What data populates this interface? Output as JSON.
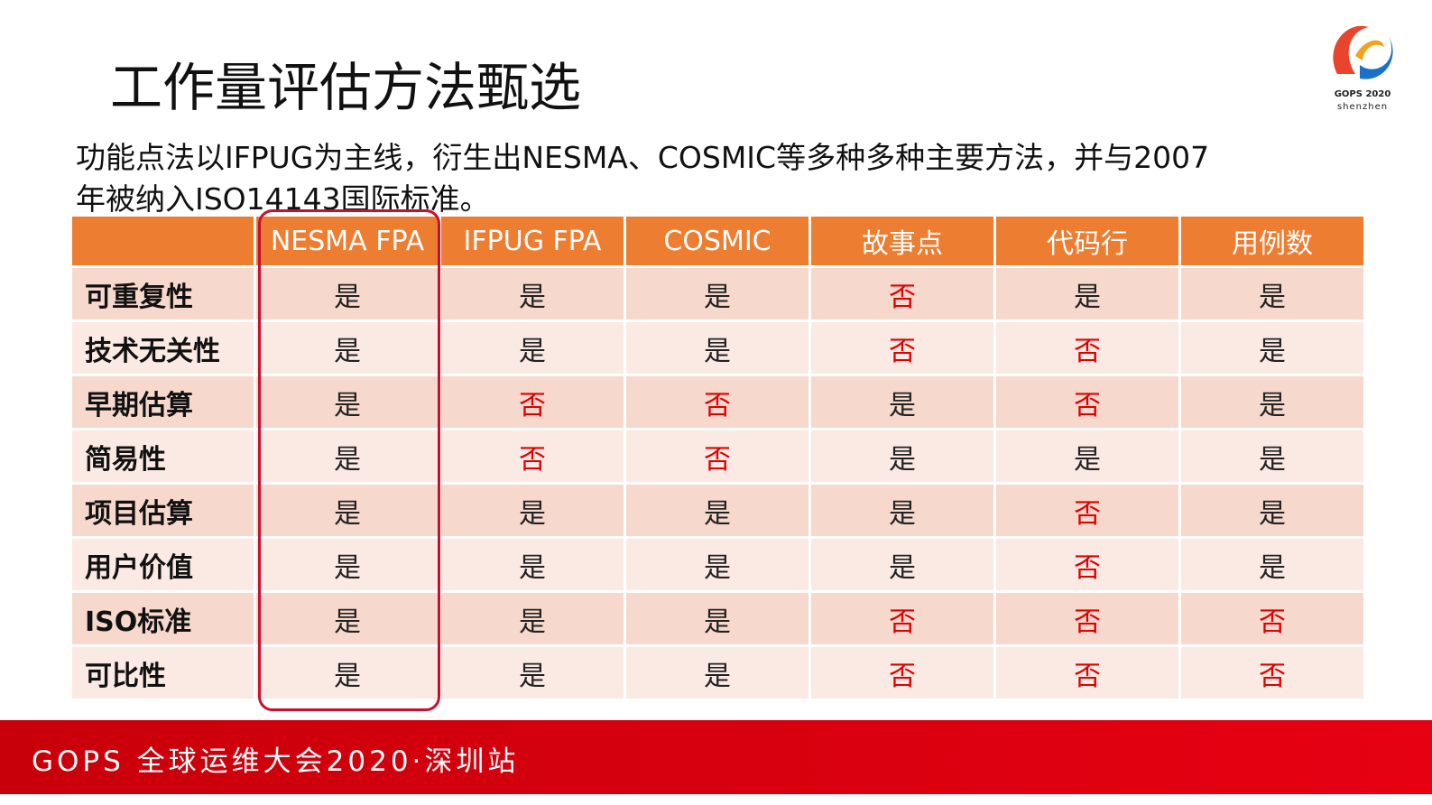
{
  "header": {
    "title": "工作量评估方法甄选",
    "subtitle_lines": [
      "功能点法以IFPUG为主线，衍生出NESMA、COSMIC等多种多种主要方法，并与2007",
      "年被纳入ISO14143国际标准。"
    ]
  },
  "logo": {
    "name": "GOPS 2020",
    "city": "shenzhen"
  },
  "table": {
    "columns": [
      "NESMA FPA",
      "IFPUG FPA",
      "COSMIC",
      "故事点",
      "代码行",
      "用例数"
    ],
    "rows": [
      {
        "label": "可重复性",
        "cells": [
          {
            "text": "是",
            "color": "#222222"
          },
          {
            "text": "是",
            "color": "#222222"
          },
          {
            "text": "是",
            "color": "#222222"
          },
          {
            "text": "否",
            "color": "#e00000"
          },
          {
            "text": "是",
            "color": "#222222"
          },
          {
            "text": "是",
            "color": "#222222"
          }
        ]
      },
      {
        "label": "技术无关性",
        "cells": [
          {
            "text": "是",
            "color": "#222222"
          },
          {
            "text": "是",
            "color": "#222222"
          },
          {
            "text": "是",
            "color": "#222222"
          },
          {
            "text": "否",
            "color": "#e00000"
          },
          {
            "text": "否",
            "color": "#e00000"
          },
          {
            "text": "是",
            "color": "#222222"
          }
        ]
      },
      {
        "label": "早期估算",
        "cells": [
          {
            "text": "是",
            "color": "#222222"
          },
          {
            "text": "否",
            "color": "#e00000"
          },
          {
            "text": "否",
            "color": "#e00000"
          },
          {
            "text": "是",
            "color": "#222222"
          },
          {
            "text": "否",
            "color": "#e00000"
          },
          {
            "text": "是",
            "color": "#222222"
          }
        ]
      },
      {
        "label": "简易性",
        "cells": [
          {
            "text": "是",
            "color": "#222222"
          },
          {
            "text": "否",
            "color": "#e00000"
          },
          {
            "text": "否",
            "color": "#e00000"
          },
          {
            "text": "是",
            "color": "#222222"
          },
          {
            "text": "是",
            "color": "#222222"
          },
          {
            "text": "是",
            "color": "#222222"
          }
        ]
      },
      {
        "label": "项目估算",
        "cells": [
          {
            "text": "是",
            "color": "#222222"
          },
          {
            "text": "是",
            "color": "#222222"
          },
          {
            "text": "是",
            "color": "#222222"
          },
          {
            "text": "是",
            "color": "#222222"
          },
          {
            "text": "否",
            "color": "#e00000"
          },
          {
            "text": "是",
            "color": "#222222"
          }
        ]
      },
      {
        "label": "用户价值",
        "cells": [
          {
            "text": "是",
            "color": "#222222"
          },
          {
            "text": "是",
            "color": "#222222"
          },
          {
            "text": "是",
            "color": "#222222"
          },
          {
            "text": "是",
            "color": "#222222"
          },
          {
            "text": "否",
            "color": "#e00000"
          },
          {
            "text": "是",
            "color": "#222222"
          }
        ]
      },
      {
        "label": "ISO标准",
        "cells": [
          {
            "text": "是",
            "color": "#222222"
          },
          {
            "text": "是",
            "color": "#222222"
          },
          {
            "text": "是",
            "color": "#222222"
          },
          {
            "text": "否",
            "color": "#e00000"
          },
          {
            "text": "否",
            "color": "#e00000"
          },
          {
            "text": "否",
            "color": "#e00000"
          }
        ]
      },
      {
        "label": "可比性",
        "cells": [
          {
            "text": "是",
            "color": "#222222"
          },
          {
            "text": "是",
            "color": "#222222"
          },
          {
            "text": "是",
            "color": "#222222"
          },
          {
            "text": "否",
            "color": "#e00000"
          },
          {
            "text": "否",
            "color": "#e00000"
          },
          {
            "text": "否",
            "color": "#e00000"
          }
        ]
      }
    ]
  },
  "footer": {
    "text": "GOPS 全球运维大会2020·深圳站"
  }
}
